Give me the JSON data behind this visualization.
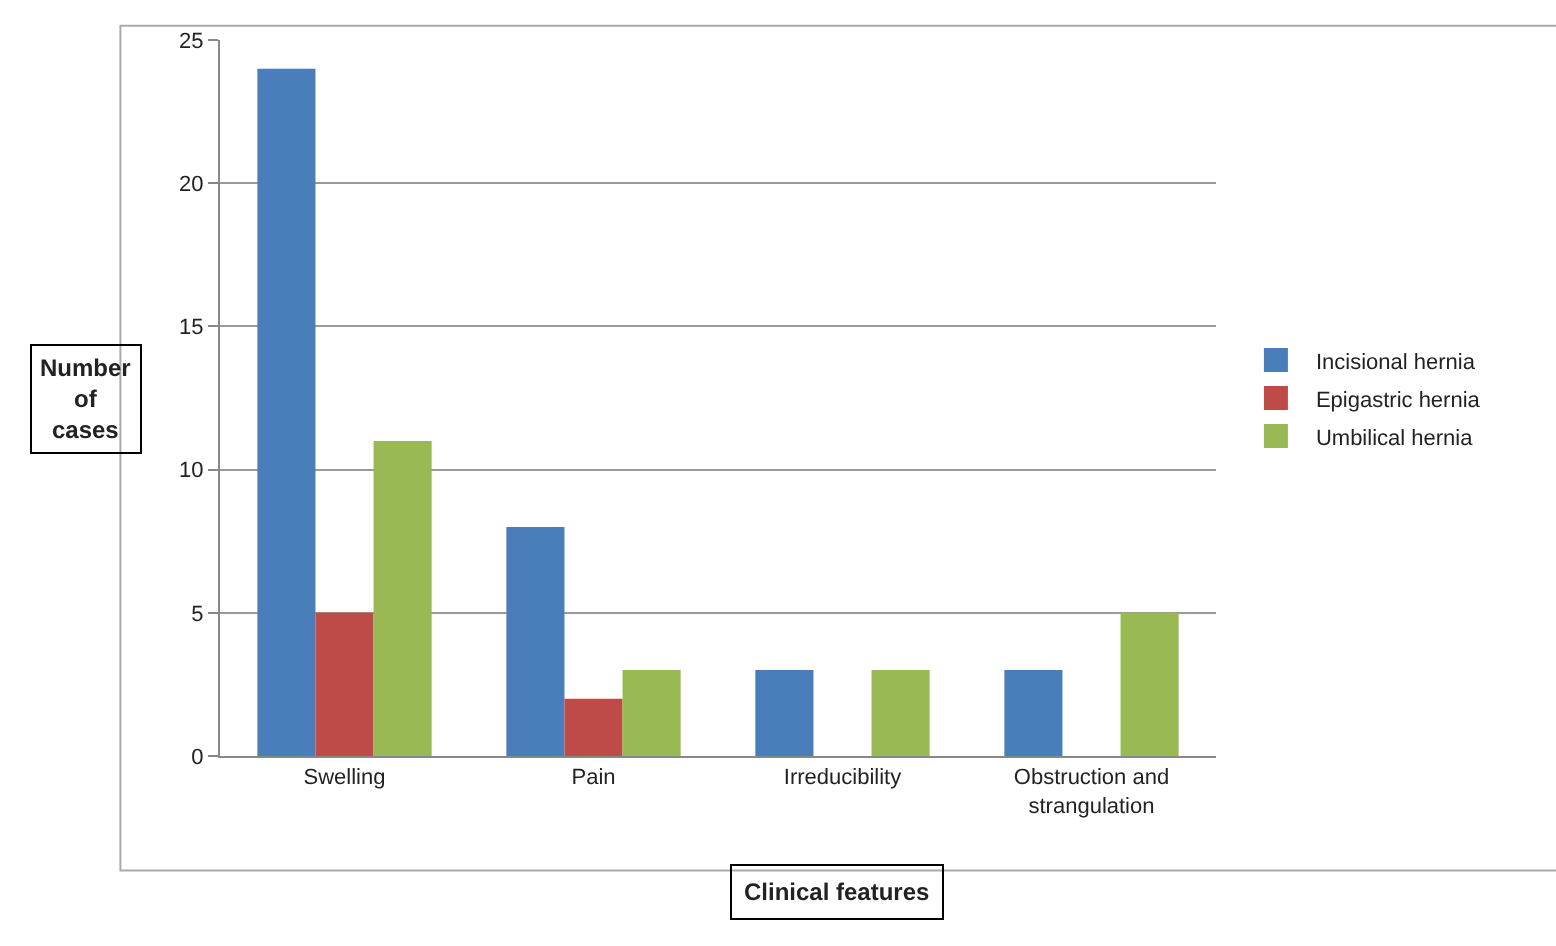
{
  "chart_data": {
    "type": "bar",
    "categories": [
      "Swelling",
      "Pain",
      "Irreducibility",
      "Obstruction and strangulation"
    ],
    "series": [
      {
        "name": "Incisional hernia",
        "color": "#4a7ebb",
        "values": [
          24,
          8,
          3,
          3
        ]
      },
      {
        "name": "Epigastric hernia",
        "color": "#be4b48",
        "values": [
          5,
          2,
          0,
          0
        ]
      },
      {
        "name": "Umbilical hernia",
        "color": "#98b954",
        "values": [
          11,
          3,
          3,
          5
        ]
      }
    ],
    "xlabel": "Clinical features",
    "ylabel": "Number of cases",
    "ylim": [
      0,
      25
    ],
    "yticks": [
      0,
      5,
      10,
      15,
      20,
      25
    ],
    "grid": "y",
    "legend": "right"
  }
}
